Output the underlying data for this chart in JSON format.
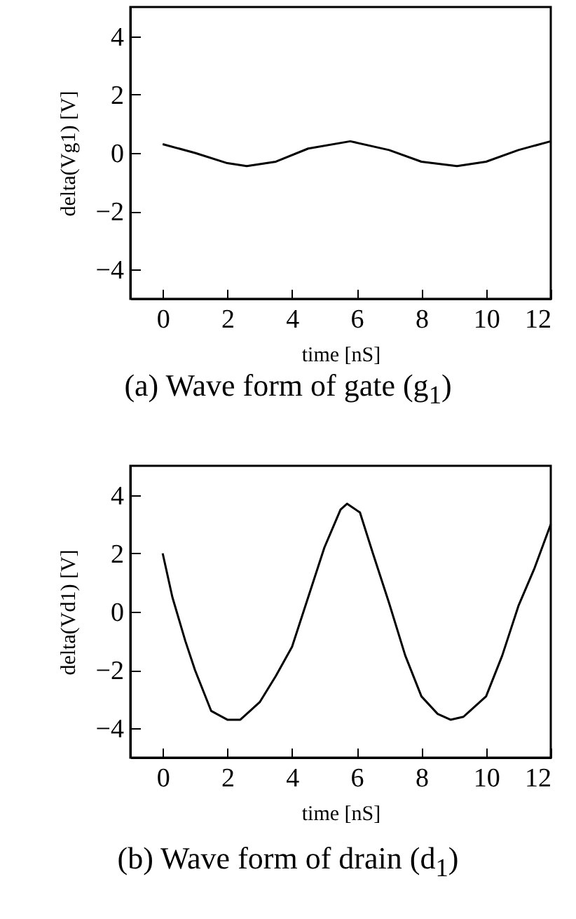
{
  "chart_data": [
    {
      "type": "line",
      "title": "(a)  Wave form of gate (g$_{1}$)",
      "xlabel": "time [nS]",
      "ylabel": "delta(Vg1) [V]",
      "xlim": [
        -1,
        12
      ],
      "ylim": [
        -5,
        5
      ],
      "xticks": [
        0,
        2,
        4,
        6,
        8,
        10,
        12
      ],
      "yticks": [
        -4,
        -2,
        0,
        2,
        4
      ],
      "line_style": "solid",
      "series": [
        {
          "color": "#000000",
          "x": [
            0,
            1,
            2,
            2.6,
            3.5,
            4.5,
            5.8,
            7,
            8,
            9.1,
            10,
            11,
            12
          ],
          "values": [
            0.3,
            0.0,
            -0.35,
            -0.45,
            -0.3,
            0.15,
            0.4,
            0.1,
            -0.3,
            -0.45,
            -0.3,
            0.1,
            0.4
          ]
        }
      ]
    },
    {
      "type": "line",
      "title": "(b)  Wave form of drain (d$_{1}$)",
      "xlabel": "time [nS]",
      "ylabel": "delta(Vd1) [V]",
      "xlim": [
        -1,
        12
      ],
      "ylim": [
        -5,
        5
      ],
      "xticks": [
        0,
        2,
        4,
        6,
        8,
        10,
        12
      ],
      "yticks": [
        -4,
        -2,
        0,
        2,
        4
      ],
      "line_style": "solid",
      "series": [
        {
          "color": "#000000",
          "x": [
            0,
            0.3,
            0.7,
            1,
            1.5,
            2,
            2.4,
            3,
            3.5,
            4,
            4.5,
            5,
            5.5,
            5.7,
            6.1,
            6.5,
            7,
            7.5,
            8,
            8.5,
            8.9,
            9.3,
            10,
            10.5,
            11,
            11.5,
            12
          ],
          "values": [
            2.0,
            0.5,
            -1.0,
            -2.0,
            -3.4,
            -3.7,
            -3.7,
            -3.1,
            -2.2,
            -1.2,
            0.5,
            2.2,
            3.5,
            3.7,
            3.4,
            2.0,
            0.3,
            -1.5,
            -2.9,
            -3.5,
            -3.7,
            -3.6,
            -2.9,
            -1.5,
            0.2,
            1.5,
            3.0
          ]
        }
      ]
    }
  ]
}
